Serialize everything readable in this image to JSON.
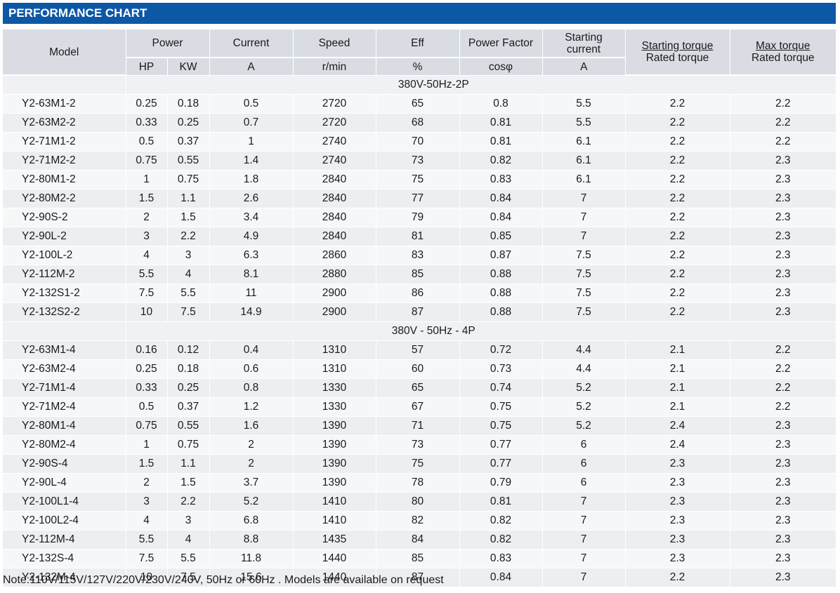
{
  "title": "PERFORMANCE CHART",
  "headers": {
    "model": "Model",
    "power": "Power",
    "hp": "HP",
    "kw": "KW",
    "current": "Current",
    "current_unit": "A",
    "speed": "Speed",
    "speed_unit": "r/min",
    "eff": "Eff",
    "eff_unit": "%",
    "pf": "Power Factor",
    "pf_unit": "cosφ",
    "start_current_1": "Starting",
    "start_current_2": "current",
    "start_current_unit": "A",
    "start_torque_top": "Starting torque",
    "start_torque_bottom": "Rated torque",
    "max_torque_top": "Max torque",
    "max_torque_bottom": "Rated torque"
  },
  "sections": [
    {
      "label": "380V-50Hz-2P",
      "rows": [
        [
          "Y2-63M1-2",
          "0.25",
          "0.18",
          "0.5",
          "2720",
          "65",
          "0.8",
          "5.5",
          "2.2",
          "2.2"
        ],
        [
          "Y2-63M2-2",
          "0.33",
          "0.25",
          "0.7",
          "2720",
          "68",
          "0.81",
          "5.5",
          "2.2",
          "2.2"
        ],
        [
          "Y2-71M1-2",
          "0.5",
          "0.37",
          "1",
          "2740",
          "70",
          "0.81",
          "6.1",
          "2.2",
          "2.2"
        ],
        [
          "Y2-71M2-2",
          "0.75",
          "0.55",
          "1.4",
          "2740",
          "73",
          "0.82",
          "6.1",
          "2.2",
          "2.3"
        ],
        [
          "Y2-80M1-2",
          "1",
          "0.75",
          "1.8",
          "2840",
          "75",
          "0.83",
          "6.1",
          "2.2",
          "2.3"
        ],
        [
          "Y2-80M2-2",
          "1.5",
          "1.1",
          "2.6",
          "2840",
          "77",
          "0.84",
          "7",
          "2.2",
          "2.3"
        ],
        [
          "Y2-90S-2",
          "2",
          "1.5",
          "3.4",
          "2840",
          "79",
          "0.84",
          "7",
          "2.2",
          "2.3"
        ],
        [
          "Y2-90L-2",
          "3",
          "2.2",
          "4.9",
          "2840",
          "81",
          "0.85",
          "7",
          "2.2",
          "2.3"
        ],
        [
          "Y2-100L-2",
          "4",
          "3",
          "6.3",
          "2860",
          "83",
          "0.87",
          "7.5",
          "2.2",
          "2.3"
        ],
        [
          "Y2-112M-2",
          "5.5",
          "4",
          "8.1",
          "2880",
          "85",
          "0.88",
          "7.5",
          "2.2",
          "2.3"
        ],
        [
          "Y2-132S1-2",
          "7.5",
          "5.5",
          "11",
          "2900",
          "86",
          "0.88",
          "7.5",
          "2.2",
          "2.3"
        ],
        [
          "Y2-132S2-2",
          "10",
          "7.5",
          "14.9",
          "2900",
          "87",
          "0.88",
          "7.5",
          "2.2",
          "2.3"
        ]
      ]
    },
    {
      "label": "380V - 50Hz - 4P",
      "rows": [
        [
          "Y2-63M1-4",
          "0.16",
          "0.12",
          "0.4",
          "1310",
          "57",
          "0.72",
          "4.4",
          "2.1",
          "2.2"
        ],
        [
          "Y2-63M2-4",
          "0.25",
          "0.18",
          "0.6",
          "1310",
          "60",
          "0.73",
          "4.4",
          "2.1",
          "2.2"
        ],
        [
          "Y2-71M1-4",
          "0.33",
          "0.25",
          "0.8",
          "1330",
          "65",
          "0.74",
          "5.2",
          "2.1",
          "2.2"
        ],
        [
          "Y2-71M2-4",
          "0.5",
          "0.37",
          "1.2",
          "1330",
          "67",
          "0.75",
          "5.2",
          "2.1",
          "2.2"
        ],
        [
          "Y2-80M1-4",
          "0.75",
          "0.55",
          "1.6",
          "1390",
          "71",
          "0.75",
          "5.2",
          "2.4",
          "2.3"
        ],
        [
          "Y2-80M2-4",
          "1",
          "0.75",
          "2",
          "1390",
          "73",
          "0.77",
          "6",
          "2.4",
          "2.3"
        ],
        [
          "Y2-90S-4",
          "1.5",
          "1.1",
          "2",
          "1390",
          "75",
          "0.77",
          "6",
          "2.3",
          "2.3"
        ],
        [
          "Y2-90L-4",
          "2",
          "1.5",
          "3.7",
          "1390",
          "78",
          "0.79",
          "6",
          "2.3",
          "2.3"
        ],
        [
          "Y2-100L1-4",
          "3",
          "2.2",
          "5.2",
          "1410",
          "80",
          "0.81",
          "7",
          "2.3",
          "2.3"
        ],
        [
          "Y2-100L2-4",
          "4",
          "3",
          "6.8",
          "1410",
          "82",
          "0.82",
          "7",
          "2.3",
          "2.3"
        ],
        [
          "Y2-112M-4",
          "5.5",
          "4",
          "8.8",
          "1435",
          "84",
          "0.82",
          "7",
          "2.3",
          "2.3"
        ],
        [
          "Y2-132S-4",
          "7.5",
          "5.5",
          "11.8",
          "1440",
          "85",
          "0.83",
          "7",
          "2.3",
          "2.3"
        ],
        [
          "Y2-132M-4",
          "10",
          "7.5",
          "15.6",
          "1440",
          "87",
          "0.84",
          "7",
          "2.2",
          "2.3"
        ]
      ]
    }
  ],
  "note": "Note:110V/115V/127V/220V/230V/240V, 50Hz or 60Hz . Models are available on request",
  "colors": {
    "title_bg": "#0d58a6",
    "header_bg": "#d9dde3",
    "row_bg": "#eceef1"
  }
}
